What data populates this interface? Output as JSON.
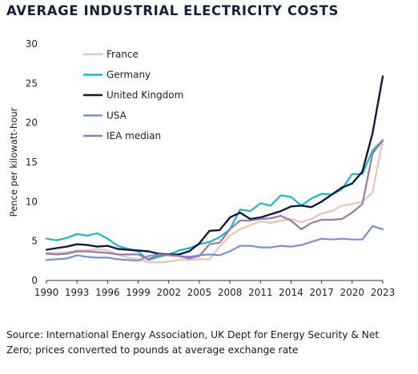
{
  "title": "AVERAGE INDUSTRIAL ELECTRICITY COSTS",
  "source": "Source: International Energy Association, UK Dept for Energy Security & Net Zero; prices converted to pounds at average exchange rate",
  "chart_data": {
    "type": "line",
    "title": "AVERAGE INDUSTRIAL ELECTRICITY COSTS",
    "xlabel": "",
    "ylabel": "Pence per kilowatt-hour",
    "ylim": [
      0,
      30
    ],
    "yticks": [
      0,
      5,
      10,
      15,
      20,
      25,
      30
    ],
    "xlim": [
      1990,
      2023
    ],
    "xticks": [
      1990,
      1993,
      1996,
      1999,
      2002,
      2005,
      2008,
      2011,
      2014,
      2017,
      2020,
      2023
    ],
    "grid": false,
    "legend_position": "top-left",
    "x": [
      1990,
      1991,
      1992,
      1993,
      1994,
      1995,
      1996,
      1997,
      1998,
      1999,
      2000,
      2001,
      2002,
      2003,
      2004,
      2005,
      2006,
      2007,
      2008,
      2009,
      2010,
      2011,
      2012,
      2013,
      2014,
      2015,
      2016,
      2017,
      2018,
      2019,
      2020,
      2021,
      2022,
      2023
    ],
    "series": [
      {
        "name": "France",
        "color": "#e8c4b8",
        "values": [
          3.5,
          3.5,
          3.6,
          3.8,
          3.8,
          4.0,
          3.8,
          3.3,
          2.9,
          2.7,
          2.3,
          2.3,
          2.4,
          2.6,
          2.6,
          2.7,
          2.7,
          4.3,
          5.7,
          6.5,
          7.0,
          7.5,
          7.3,
          7.6,
          7.8,
          7.4,
          7.8,
          8.5,
          8.8,
          9.5,
          9.7,
          10.0,
          11.2,
          17.8
        ]
      },
      {
        "name": "Germany",
        "color": "#1fb5c8",
        "values": [
          5.3,
          5.1,
          5.4,
          5.9,
          5.7,
          6.0,
          5.3,
          4.4,
          4.0,
          3.7,
          2.6,
          3.0,
          3.3,
          3.8,
          4.1,
          4.6,
          4.9,
          5.5,
          6.5,
          9.0,
          8.8,
          9.8,
          9.5,
          10.8,
          10.6,
          9.5,
          10.4,
          11.0,
          10.9,
          11.6,
          13.5,
          13.5,
          16.5,
          17.8
        ]
      },
      {
        "name": "United Kingdom",
        "color": "#0d1b3e",
        "values": [
          3.9,
          4.1,
          4.3,
          4.6,
          4.5,
          4.3,
          4.4,
          4.0,
          3.9,
          3.8,
          3.7,
          3.4,
          3.3,
          3.3,
          3.7,
          4.7,
          6.3,
          6.4,
          8.0,
          8.6,
          7.8,
          8.0,
          8.4,
          8.8,
          9.4,
          9.5,
          9.3,
          10.0,
          10.9,
          11.8,
          12.3,
          13.8,
          18.7,
          25.9
        ]
      },
      {
        "name": "USA",
        "color": "#7b8fd6",
        "values": [
          2.6,
          2.7,
          2.8,
          3.2,
          3.0,
          2.9,
          2.9,
          2.7,
          2.6,
          2.5,
          3.1,
          3.3,
          3.2,
          3.1,
          3.0,
          3.2,
          3.3,
          3.2,
          3.7,
          4.4,
          4.4,
          4.2,
          4.2,
          4.4,
          4.3,
          4.5,
          4.9,
          5.3,
          5.2,
          5.3,
          5.2,
          5.2,
          6.9,
          6.5
        ]
      },
      {
        "name": "IEA median",
        "color": "#9a7aa6",
        "values": [
          3.4,
          3.3,
          3.4,
          3.7,
          3.7,
          3.6,
          3.5,
          3.3,
          3.3,
          3.3,
          2.7,
          3.2,
          3.2,
          3.1,
          2.8,
          3.1,
          4.6,
          4.8,
          6.5,
          7.6,
          7.6,
          7.8,
          7.9,
          8.2,
          7.6,
          6.5,
          7.3,
          7.7,
          7.7,
          7.8,
          8.6,
          9.7,
          16.1,
          17.8
        ]
      }
    ]
  }
}
